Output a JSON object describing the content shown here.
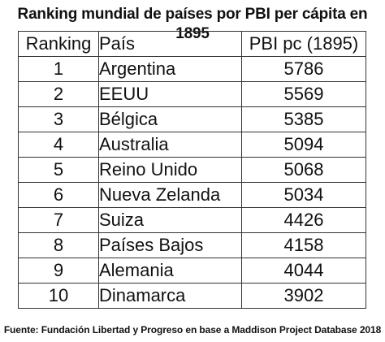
{
  "title": "Ranking mundial de países por PBI per cápita en 1895",
  "headers": {
    "ranking": "Ranking",
    "pais": "País",
    "pbi": "PBI pc (1895)"
  },
  "rows": [
    {
      "rank": "1",
      "pais": "Argentina",
      "pbi": "5786"
    },
    {
      "rank": "2",
      "pais": "EEUU",
      "pbi": "5569"
    },
    {
      "rank": "3",
      "pais": "Bélgica",
      "pbi": "5385"
    },
    {
      "rank": "4",
      "pais": "Australia",
      "pbi": "5094"
    },
    {
      "rank": "5",
      "pais": "Reino Unido",
      "pbi": "5068"
    },
    {
      "rank": "6",
      "pais": "Nueva Zelanda",
      "pbi": "5034"
    },
    {
      "rank": "7",
      "pais": "Suiza",
      "pbi": "4426"
    },
    {
      "rank": "8",
      "pais": "Países Bajos",
      "pbi": "4158"
    },
    {
      "rank": "9",
      "pais": "Alemania",
      "pbi": "4044"
    },
    {
      "rank": "10",
      "pais": "Dinamarca",
      "pbi": "3902"
    }
  ],
  "source": "Fuente: Fundación Libertad y Progreso en base a Maddison Project Database 2018"
}
